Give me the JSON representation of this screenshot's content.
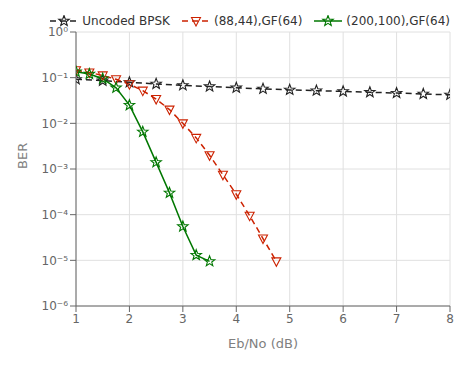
{
  "chart_data": {
    "type": "line",
    "xlabel": "Eb/No (dB)",
    "ylabel": "BER",
    "log": "y",
    "grid": true,
    "legend": "upper right",
    "xlim": [
      1,
      8
    ],
    "xticks": [
      1,
      2,
      3,
      4,
      5,
      6,
      7,
      8
    ],
    "ylim": [
      1e-06,
      1
    ],
    "yticks": [
      {
        "value": 1e-06,
        "label": "10⁻⁶"
      },
      {
        "value": 1e-05,
        "label": "10⁻⁵"
      },
      {
        "value": 0.0001,
        "label": "10⁻⁴"
      },
      {
        "value": 0.001,
        "label": "10⁻³"
      },
      {
        "value": 0.01,
        "label": "10⁻²"
      },
      {
        "value": 0.1,
        "label": "10⁻¹"
      },
      {
        "value": 1,
        "label": "10⁰"
      }
    ],
    "series": [
      {
        "name": "Uncoded BPSK",
        "color": "#222222",
        "marker": "star",
        "line_style": "dashed",
        "x": [
          1.0,
          1.5,
          2.0,
          2.5,
          3.0,
          3.5,
          4.0,
          4.5,
          5.0,
          5.5,
          6.0,
          6.5,
          7.0,
          7.5,
          8.0
        ],
        "values": [
          0.092,
          0.086,
          0.079,
          0.073,
          0.068,
          0.064,
          0.06,
          0.057,
          0.054,
          0.052,
          0.05,
          0.048,
          0.046,
          0.044,
          0.042
        ]
      },
      {
        "name": "(88,44),GF(64)",
        "color": "#cc2200",
        "marker": "triangle_down",
        "line_style": "dashed",
        "x": [
          1.0,
          1.25,
          1.5,
          1.75,
          2.0,
          2.25,
          2.5,
          2.75,
          3.0,
          3.25,
          3.5,
          3.75,
          4.0,
          4.25,
          4.5,
          4.75
        ],
        "values": [
          0.145,
          0.13,
          0.112,
          0.092,
          0.072,
          0.052,
          0.034,
          0.02,
          0.01,
          0.0048,
          0.002,
          0.00075,
          0.00028,
          9.5e-05,
          3e-05,
          9.5e-06
        ]
      },
      {
        "name": "(200,100),GF(64)",
        "color": "#007700",
        "marker": "star",
        "line_style": "solid",
        "x": [
          1.0,
          1.25,
          1.5,
          1.75,
          2.0,
          2.25,
          2.5,
          2.75,
          3.0,
          3.25,
          3.5
        ],
        "values": [
          0.135,
          0.12,
          0.095,
          0.06,
          0.025,
          0.0065,
          0.0014,
          0.0003,
          5.5e-05,
          1.3e-05,
          9.5e-06
        ]
      }
    ]
  }
}
